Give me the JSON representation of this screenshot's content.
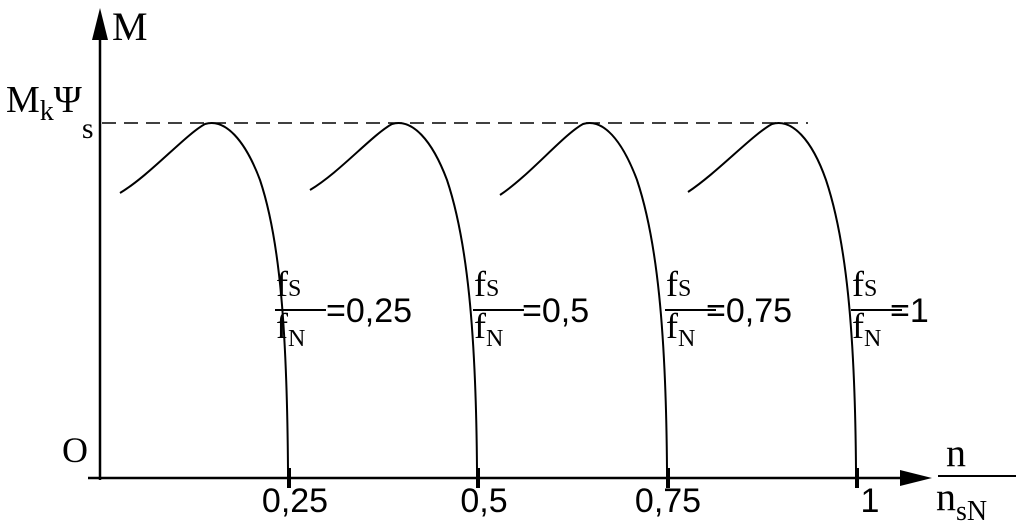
{
  "axes": {
    "y_label": "M",
    "x_label_num": "n",
    "x_label_den_main": "n",
    "x_label_den_sub": "sN",
    "origin_label": "O",
    "level_label_main": "M",
    "level_label_sub1": "k",
    "level_label_psi": "Ψ",
    "level_label_sub2": "s"
  },
  "ticks": [
    {
      "label": "0,25"
    },
    {
      "label": "0,5"
    },
    {
      "label": "0,75"
    },
    {
      "label": "1"
    }
  ],
  "curve_labels": [
    {
      "num_main": "f",
      "num_sub": "S",
      "den_main": "f",
      "den_sub": "N",
      "value": "=0,25"
    },
    {
      "num_main": "f",
      "num_sub": "S",
      "den_main": "f",
      "den_sub": "N",
      "value": "=0,5"
    },
    {
      "num_main": "f",
      "num_sub": "S",
      "den_main": "f",
      "den_sub": "N",
      "value": "=0,75"
    },
    {
      "num_main": "f",
      "num_sub": "S",
      "den_main": "f",
      "den_sub": "N",
      "value": "=1"
    }
  ]
}
